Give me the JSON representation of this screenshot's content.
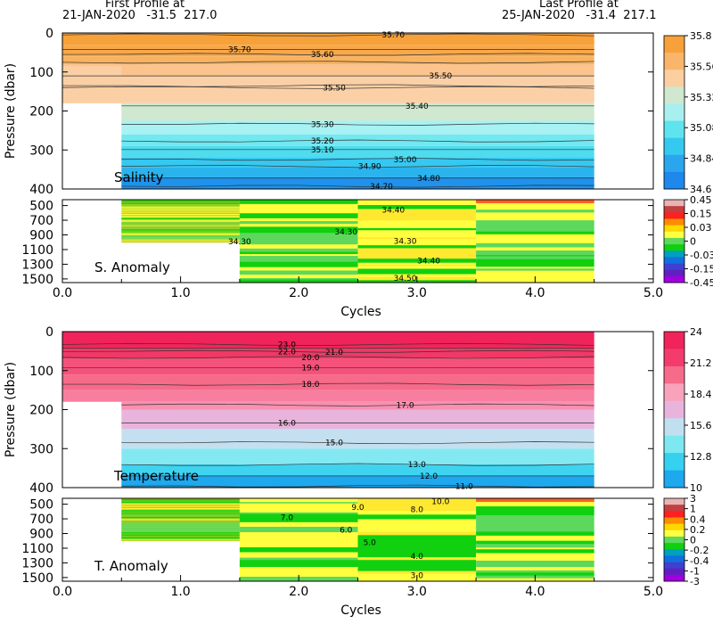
{
  "header": {
    "first_label": "First Profile at",
    "first_info": "21-JAN-2020   -31.5  217.0",
    "last_label": "Last Profile at",
    "last_info": "25-JAN-2020   -31.4  217.1"
  },
  "chart_data": [
    {
      "type": "heatmap",
      "name": "salinity",
      "panel_label": "Salinity",
      "ylabel": "Pressure (dbar)",
      "xlabel": "Cycles",
      "ylim": [
        400,
        0
      ],
      "y_ticks": [
        "0",
        "100",
        "200",
        "300",
        "400"
      ],
      "colorbar_labels": [
        "35.8",
        "35.56",
        "35.32",
        "35.08",
        "34.84",
        "34.6"
      ],
      "colorbar_colors": [
        "#f7a13a",
        "#f9b56a",
        "#fbcfa0",
        "#cfe8cf",
        "#a8f0f0",
        "#5fe3ee",
        "#36c9f0",
        "#2ba5ee",
        "#1e88ec"
      ],
      "contours": [
        {
          "label": "35.70",
          "y": 5,
          "x": 2.8
        },
        {
          "label": "35.70",
          "y": 42,
          "x": 1.5
        },
        {
          "label": "35.60",
          "y": 55,
          "x": 2.2
        },
        {
          "label": "35.50",
          "y": 140,
          "x": 2.3
        },
        {
          "label": "35.50",
          "y": 110,
          "x": 3.2
        },
        {
          "label": "35.40",
          "y": 187,
          "x": 3.0
        },
        {
          "label": "35.30",
          "y": 234,
          "x": 2.2
        },
        {
          "label": "35.20",
          "y": 277,
          "x": 2.2
        },
        {
          "label": "35.10",
          "y": 299,
          "x": 2.2
        },
        {
          "label": "35.00",
          "y": 324,
          "x": 2.9
        },
        {
          "label": "34.90",
          "y": 342,
          "x": 2.6
        },
        {
          "label": "34.80",
          "y": 372,
          "x": 3.1
        },
        {
          "label": "34.70",
          "y": 393,
          "x": 2.7
        }
      ]
    },
    {
      "type": "heatmap",
      "name": "salinity_anomaly",
      "panel_label": "S. Anomaly",
      "xlabel": "Cycles",
      "x_ticks": [
        "0.0",
        "1.0",
        "2.0",
        "3.0",
        "4.0",
        "5.0"
      ],
      "xlim": [
        0,
        5
      ],
      "y_ticks": [
        "500",
        "700",
        "900",
        "1100",
        "1300",
        "1500"
      ],
      "ylim": [
        400,
        1550
      ],
      "colorbar_labels": [
        "0.45",
        "0.15",
        "0.03",
        "0",
        "-0.03",
        "-0.15",
        "-0.45"
      ],
      "colorbar_colors": [
        "#e8b4b4",
        "#c24040",
        "#ff2020",
        "#ff8c00",
        "#ffd700",
        "#ffff40",
        "#5dd85d",
        "#10d010",
        "#00a0c0",
        "#1070e0",
        "#4040d0",
        "#6020c0",
        "#a000e0"
      ],
      "contours": [
        {
          "label": "34.40",
          "y": 560,
          "x": 2.8
        },
        {
          "label": "34.30",
          "y": 860,
          "x": 2.4
        },
        {
          "label": "34.30",
          "y": 990,
          "x": 1.5
        },
        {
          "label": "34.30",
          "y": 985,
          "x": 2.9
        },
        {
          "label": "34.40",
          "y": 1250,
          "x": 3.1
        },
        {
          "label": "34.50",
          "y": 1490,
          "x": 2.9
        }
      ]
    },
    {
      "type": "heatmap",
      "name": "temperature",
      "panel_label": "Temperature",
      "ylabel": "Pressure (dbar)",
      "xlabel": "Cycles",
      "ylim": [
        400,
        0
      ],
      "y_ticks": [
        "0",
        "100",
        "200",
        "300",
        "400"
      ],
      "colorbar_labels": [
        "24",
        "21.2",
        "18.4",
        "15.6",
        "12.8",
        "10"
      ],
      "colorbar_colors": [
        "#f0245a",
        "#f43c6c",
        "#f66a8a",
        "#f8a2bc",
        "#e8b4dc",
        "#c0e0f0",
        "#7de8f0",
        "#36d0f0",
        "#1ea8ee"
      ],
      "contours": [
        {
          "label": "23.0",
          "y": 33,
          "x": 1.9
        },
        {
          "label": "22.0",
          "y": 51,
          "x": 1.9
        },
        {
          "label": "21.0",
          "y": 53,
          "x": 2.3
        },
        {
          "label": "20.0",
          "y": 66,
          "x": 2.1
        },
        {
          "label": "19.0",
          "y": 93,
          "x": 2.1
        },
        {
          "label": "18.0",
          "y": 135,
          "x": 2.1
        },
        {
          "label": "17.0",
          "y": 188,
          "x": 2.9
        },
        {
          "label": "16.0",
          "y": 234,
          "x": 1.9
        },
        {
          "label": "15.0",
          "y": 285,
          "x": 2.3
        },
        {
          "label": "13.0",
          "y": 341,
          "x": 3.0
        },
        {
          "label": "12.0",
          "y": 370,
          "x": 3.1
        },
        {
          "label": "11.0",
          "y": 396,
          "x": 3.4
        }
      ]
    },
    {
      "type": "heatmap",
      "name": "temperature_anomaly",
      "panel_label": "T. Anomaly",
      "xlabel": "Cycles",
      "x_ticks": [
        "0.0",
        "1.0",
        "2.0",
        "3.0",
        "4.0",
        "5.0"
      ],
      "xlim": [
        0,
        5
      ],
      "y_ticks": [
        "500",
        "700",
        "900",
        "1100",
        "1300",
        "1500"
      ],
      "ylim": [
        400,
        1550
      ],
      "colorbar_labels": [
        "3",
        "1",
        "0.4",
        "0.2",
        "0",
        "-0.2",
        "-0.4",
        "-1",
        "-3"
      ],
      "colorbar_colors": [
        "#e8b4b4",
        "#c24040",
        "#ff2020",
        "#ff8c00",
        "#ffd700",
        "#ffff40",
        "#5dd85d",
        "#10d010",
        "#00a0c0",
        "#1070e0",
        "#4040d0",
        "#6020c0",
        "#a000e0"
      ],
      "contours": [
        {
          "label": "10.0",
          "y": 460,
          "x": 3.2
        },
        {
          "label": "9.0",
          "y": 540,
          "x": 2.5
        },
        {
          "label": "8.0",
          "y": 570,
          "x": 3.0
        },
        {
          "label": "7.0",
          "y": 680,
          "x": 1.9
        },
        {
          "label": "6.0",
          "y": 850,
          "x": 2.4
        },
        {
          "label": "5.0",
          "y": 1020,
          "x": 2.6
        },
        {
          "label": "4.0",
          "y": 1210,
          "x": 3.0
        },
        {
          "label": "3.0",
          "y": 1470,
          "x": 3.0
        }
      ]
    }
  ]
}
